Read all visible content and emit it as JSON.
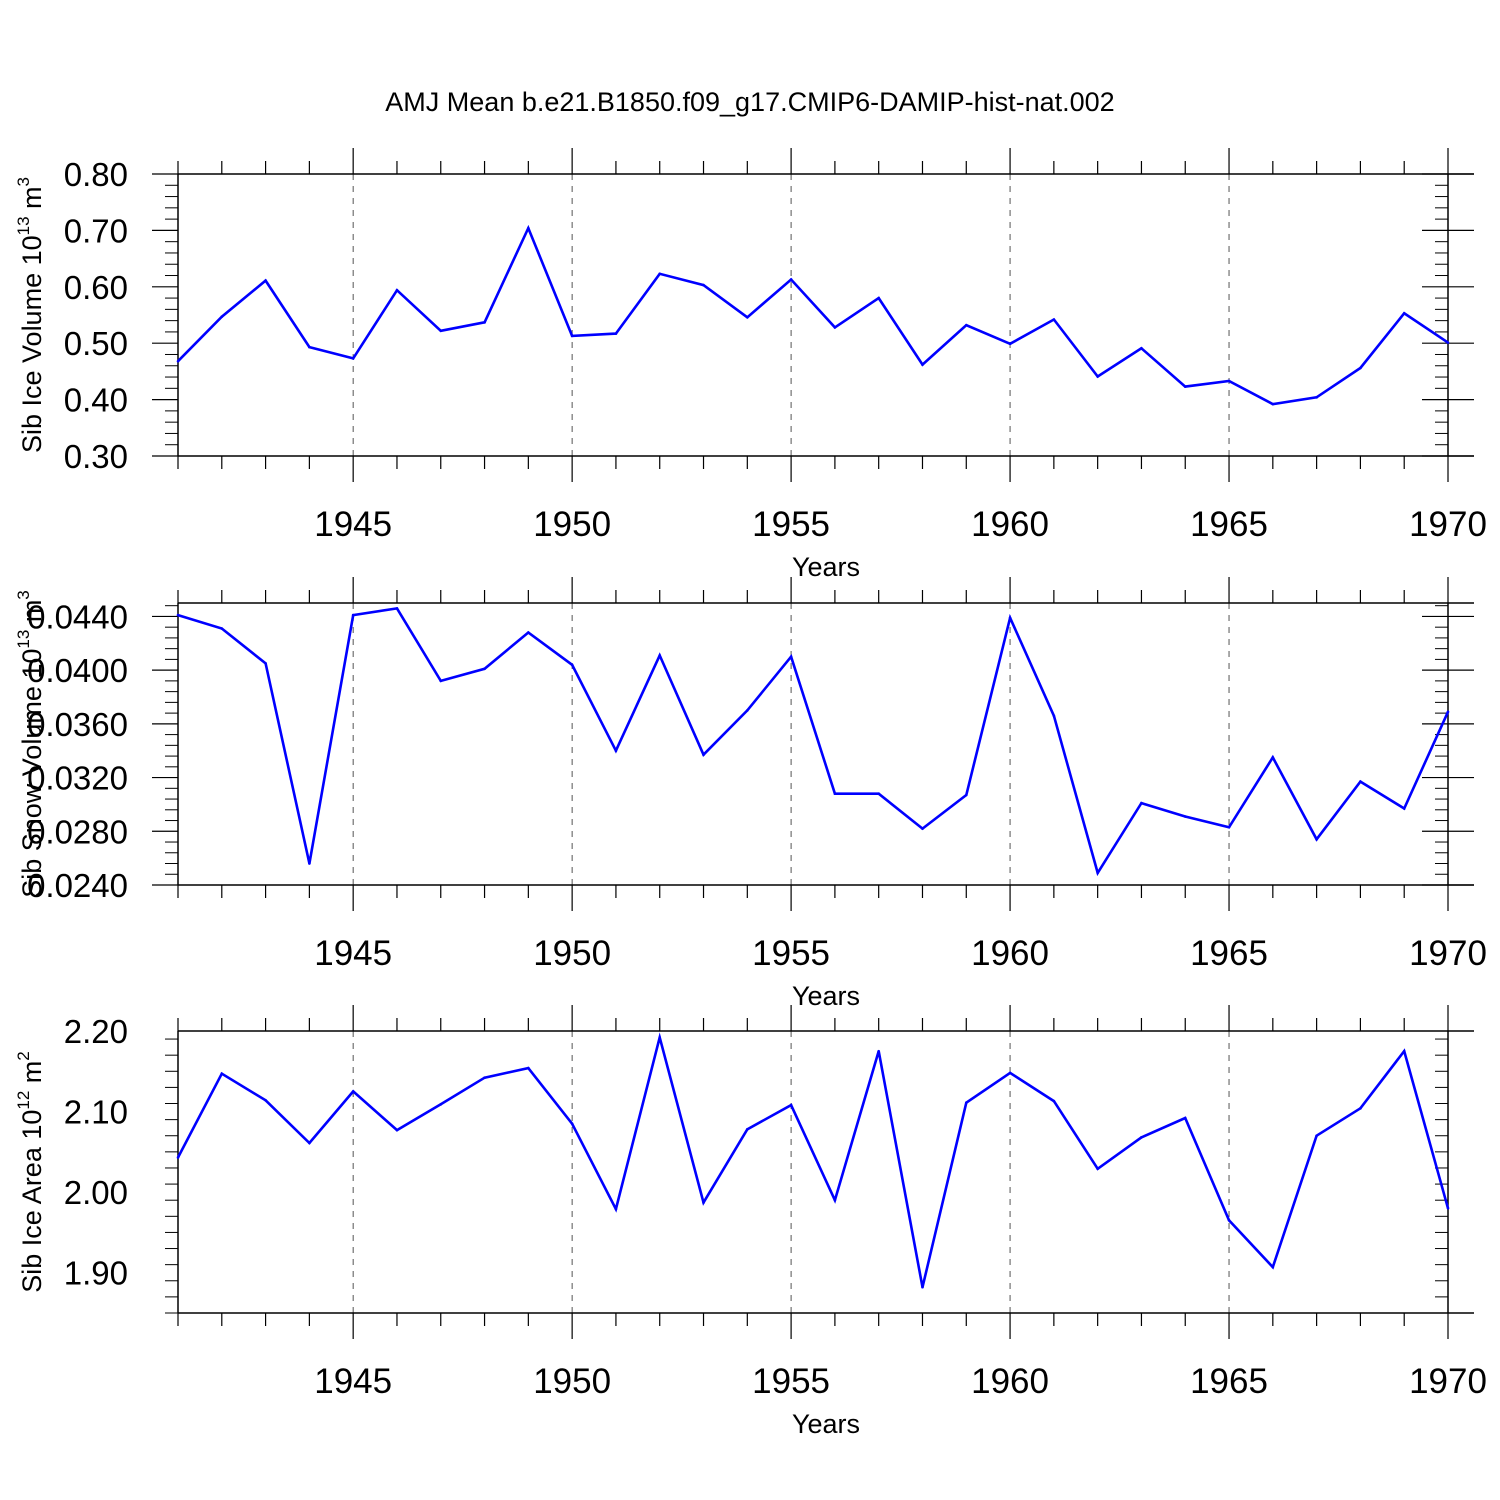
{
  "title": "AMJ Mean b.e21.B1850.f09_g17.CMIP6-DAMIP-hist-nat.002",
  "colors": {
    "line": "#0000ff",
    "axis": "#000000",
    "grid": "#555555"
  },
  "chart_data": [
    {
      "type": "line",
      "xlabel": "Years",
      "ylabel_text": "Sib Ice Volume 10",
      "ylabel_exp": "13",
      "ylabel_unit": " m",
      "ylabel_unit_exp": "3",
      "xlim": [
        1941,
        1970
      ],
      "ylim": [
        0.3,
        0.8
      ],
      "yticks": [
        0.3,
        0.4,
        0.5,
        0.6,
        0.7,
        0.8
      ],
      "ytick_labels": [
        "0.30",
        "0.40",
        "0.50",
        "0.60",
        "0.70",
        "0.80"
      ],
      "xticks": [
        1945,
        1950,
        1955,
        1960,
        1965,
        1970
      ],
      "xtick_labels": [
        "1945",
        "1950",
        "1955",
        "1960",
        "1965",
        "1970"
      ],
      "grid": "vertical dashed at major x ticks",
      "x": [
        1941,
        1942,
        1943,
        1944,
        1945,
        1946,
        1947,
        1948,
        1949,
        1950,
        1951,
        1952,
        1953,
        1954,
        1955,
        1956,
        1957,
        1958,
        1959,
        1960,
        1961,
        1962,
        1963,
        1964,
        1965,
        1966,
        1967,
        1968,
        1969,
        1970
      ],
      "values": [
        0.468,
        0.547,
        0.611,
        0.493,
        0.473,
        0.594,
        0.522,
        0.537,
        0.704,
        0.513,
        0.517,
        0.623,
        0.603,
        0.546,
        0.613,
        0.528,
        0.58,
        0.462,
        0.532,
        0.499,
        0.542,
        0.441,
        0.491,
        0.423,
        0.433,
        0.392,
        0.404,
        0.456,
        0.553,
        0.501
      ]
    },
    {
      "type": "line",
      "xlabel": "Years",
      "ylabel_text": "Sib Snow Volume 10",
      "ylabel_exp": "13",
      "ylabel_unit": " m",
      "ylabel_unit_exp": "3",
      "xlim": [
        1941,
        1970
      ],
      "ylim": [
        0.024,
        0.045
      ],
      "yticks": [
        0.024,
        0.028,
        0.032,
        0.036,
        0.04,
        0.044
      ],
      "ytick_labels": [
        "0.0240",
        "0.0280",
        "0.0320",
        "0.0360",
        "0.0400",
        "0.0440"
      ],
      "xticks": [
        1945,
        1950,
        1955,
        1960,
        1965,
        1970
      ],
      "xtick_labels": [
        "1945",
        "1950",
        "1955",
        "1960",
        "1965",
        "1970"
      ],
      "grid": "vertical dashed at major x ticks",
      "x": [
        1941,
        1942,
        1943,
        1944,
        1945,
        1946,
        1947,
        1948,
        1949,
        1950,
        1951,
        1952,
        1953,
        1954,
        1955,
        1956,
        1957,
        1958,
        1959,
        1960,
        1961,
        1962,
        1963,
        1964,
        1965,
        1966,
        1967,
        1968,
        1969,
        1970
      ],
      "values": [
        0.0441,
        0.0431,
        0.0405,
        0.0256,
        0.0441,
        0.0446,
        0.0392,
        0.0401,
        0.0428,
        0.0404,
        0.034,
        0.0411,
        0.0337,
        0.037,
        0.041,
        0.0308,
        0.0308,
        0.0282,
        0.0307,
        0.0439,
        0.0366,
        0.0249,
        0.0301,
        0.0291,
        0.0283,
        0.0335,
        0.0274,
        0.0317,
        0.0297,
        0.0369
      ]
    },
    {
      "type": "line",
      "xlabel": "Years",
      "ylabel_text": "Sib Ice Area 10",
      "ylabel_exp": "12",
      "ylabel_unit": " m",
      "ylabel_unit_exp": "2",
      "xlim": [
        1941,
        1970
      ],
      "ylim": [
        1.85,
        2.2
      ],
      "yticks": [
        1.9,
        2.0,
        2.1,
        2.2
      ],
      "ytick_labels": [
        "1.90",
        "2.00",
        "2.10",
        "2.20"
      ],
      "xticks": [
        1945,
        1950,
        1955,
        1960,
        1965,
        1970
      ],
      "xtick_labels": [
        "1945",
        "1950",
        "1955",
        "1960",
        "1965",
        "1970"
      ],
      "grid": "vertical dashed at major x ticks",
      "x": [
        1941,
        1942,
        1943,
        1944,
        1945,
        1946,
        1947,
        1948,
        1949,
        1950,
        1951,
        1952,
        1953,
        1954,
        1955,
        1956,
        1957,
        1958,
        1959,
        1960,
        1961,
        1962,
        1963,
        1964,
        1965,
        1966,
        1967,
        1968,
        1969,
        1970
      ],
      "values": [
        2.043,
        2.147,
        2.114,
        2.061,
        2.125,
        2.077,
        2.109,
        2.142,
        2.154,
        2.085,
        1.979,
        2.192,
        1.987,
        2.078,
        2.108,
        1.99,
        2.175,
        1.882,
        2.111,
        2.148,
        2.113,
        2.029,
        2.068,
        2.092,
        1.965,
        1.907,
        2.07,
        2.104,
        2.175,
        1.98
      ]
    }
  ]
}
